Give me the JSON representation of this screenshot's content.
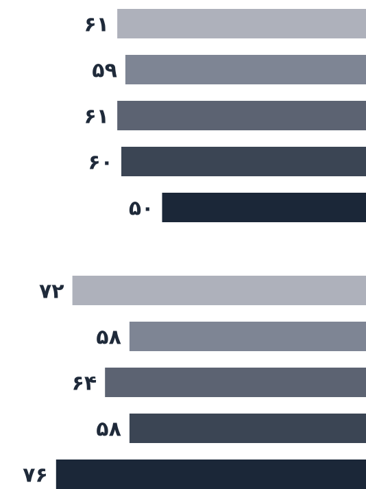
{
  "chart_data": [
    {
      "type": "bar",
      "orientation": "horizontal",
      "title": "",
      "xlabel": "",
      "ylabel": "",
      "grid": false,
      "legend": "none",
      "values": [
        61,
        59,
        61,
        60,
        50
      ],
      "labels": [
        "۶۱",
        "۵۹",
        "۶۱",
        "۶۰",
        "۵۰"
      ],
      "colors": [
        "#aeb1bb",
        "#7e8594",
        "#5c6372",
        "#3b4554",
        "#1b2738"
      ],
      "xlim": [
        0,
        80
      ]
    },
    {
      "type": "bar",
      "orientation": "horizontal",
      "title": "",
      "xlabel": "",
      "ylabel": "",
      "grid": false,
      "legend": "none",
      "values": [
        72,
        58,
        64,
        58,
        76
      ],
      "labels": [
        "۷۲",
        "۵۸",
        "۶۴",
        "۵۸",
        "۷۶"
      ],
      "colors": [
        "#aeb1bb",
        "#7e8594",
        "#5c6372",
        "#3b4554",
        "#1b2738"
      ],
      "xlim": [
        0,
        80
      ]
    }
  ]
}
